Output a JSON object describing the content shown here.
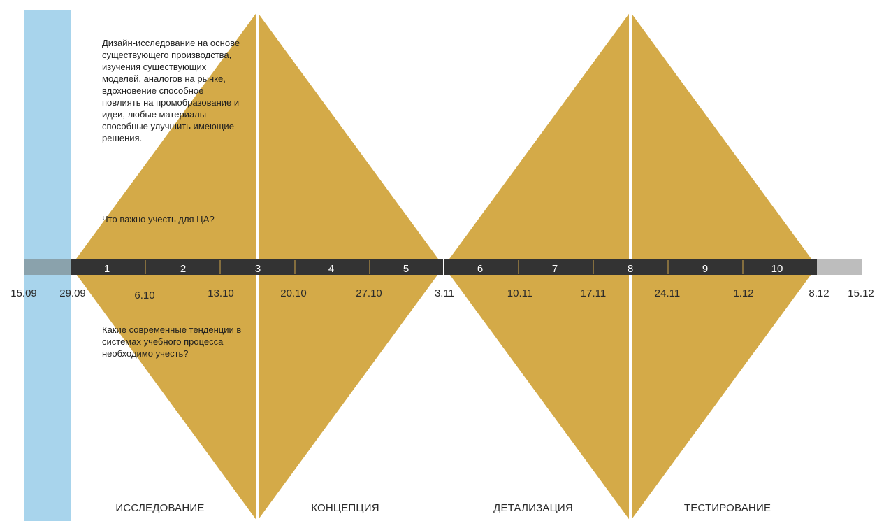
{
  "description": "Дизайн-исследование на основе существующего производства, изучения существующих моделей, аналогов на рынке, вдохновение способное повлиять на промобразование и идеи, любые материалы способные улучшить имеющие решения.",
  "questions": [
    "Что важно учесть для ЦА?",
    "Какие современные тенденции в системах учебного процесса необходимо учесть?"
  ],
  "phases": [
    "ИССЛЕДОВАНИЕ",
    "КОНЦЕПЦИЯ",
    "ДЕТАЛИЗАЦИЯ",
    "ТЕСТИРОВАНИЕ"
  ],
  "weeks": [
    "1",
    "2",
    "3",
    "4",
    "5",
    "6",
    "7",
    "8",
    "9",
    "10"
  ],
  "dates": [
    "15.09",
    "29.09",
    "6.10",
    "13.10",
    "20.10",
    "27.10",
    "3.11",
    "10.11",
    "17.11",
    "24.11",
    "1.12",
    "8.12",
    "15.12"
  ],
  "colors": {
    "diamond": "#D4AA48",
    "side_bar": "#A8D4EC",
    "timeline": "#333333",
    "timeline_start": "#8AA2AC",
    "timeline_end": "#BDBDBD",
    "divider": "#FFFFFF"
  }
}
